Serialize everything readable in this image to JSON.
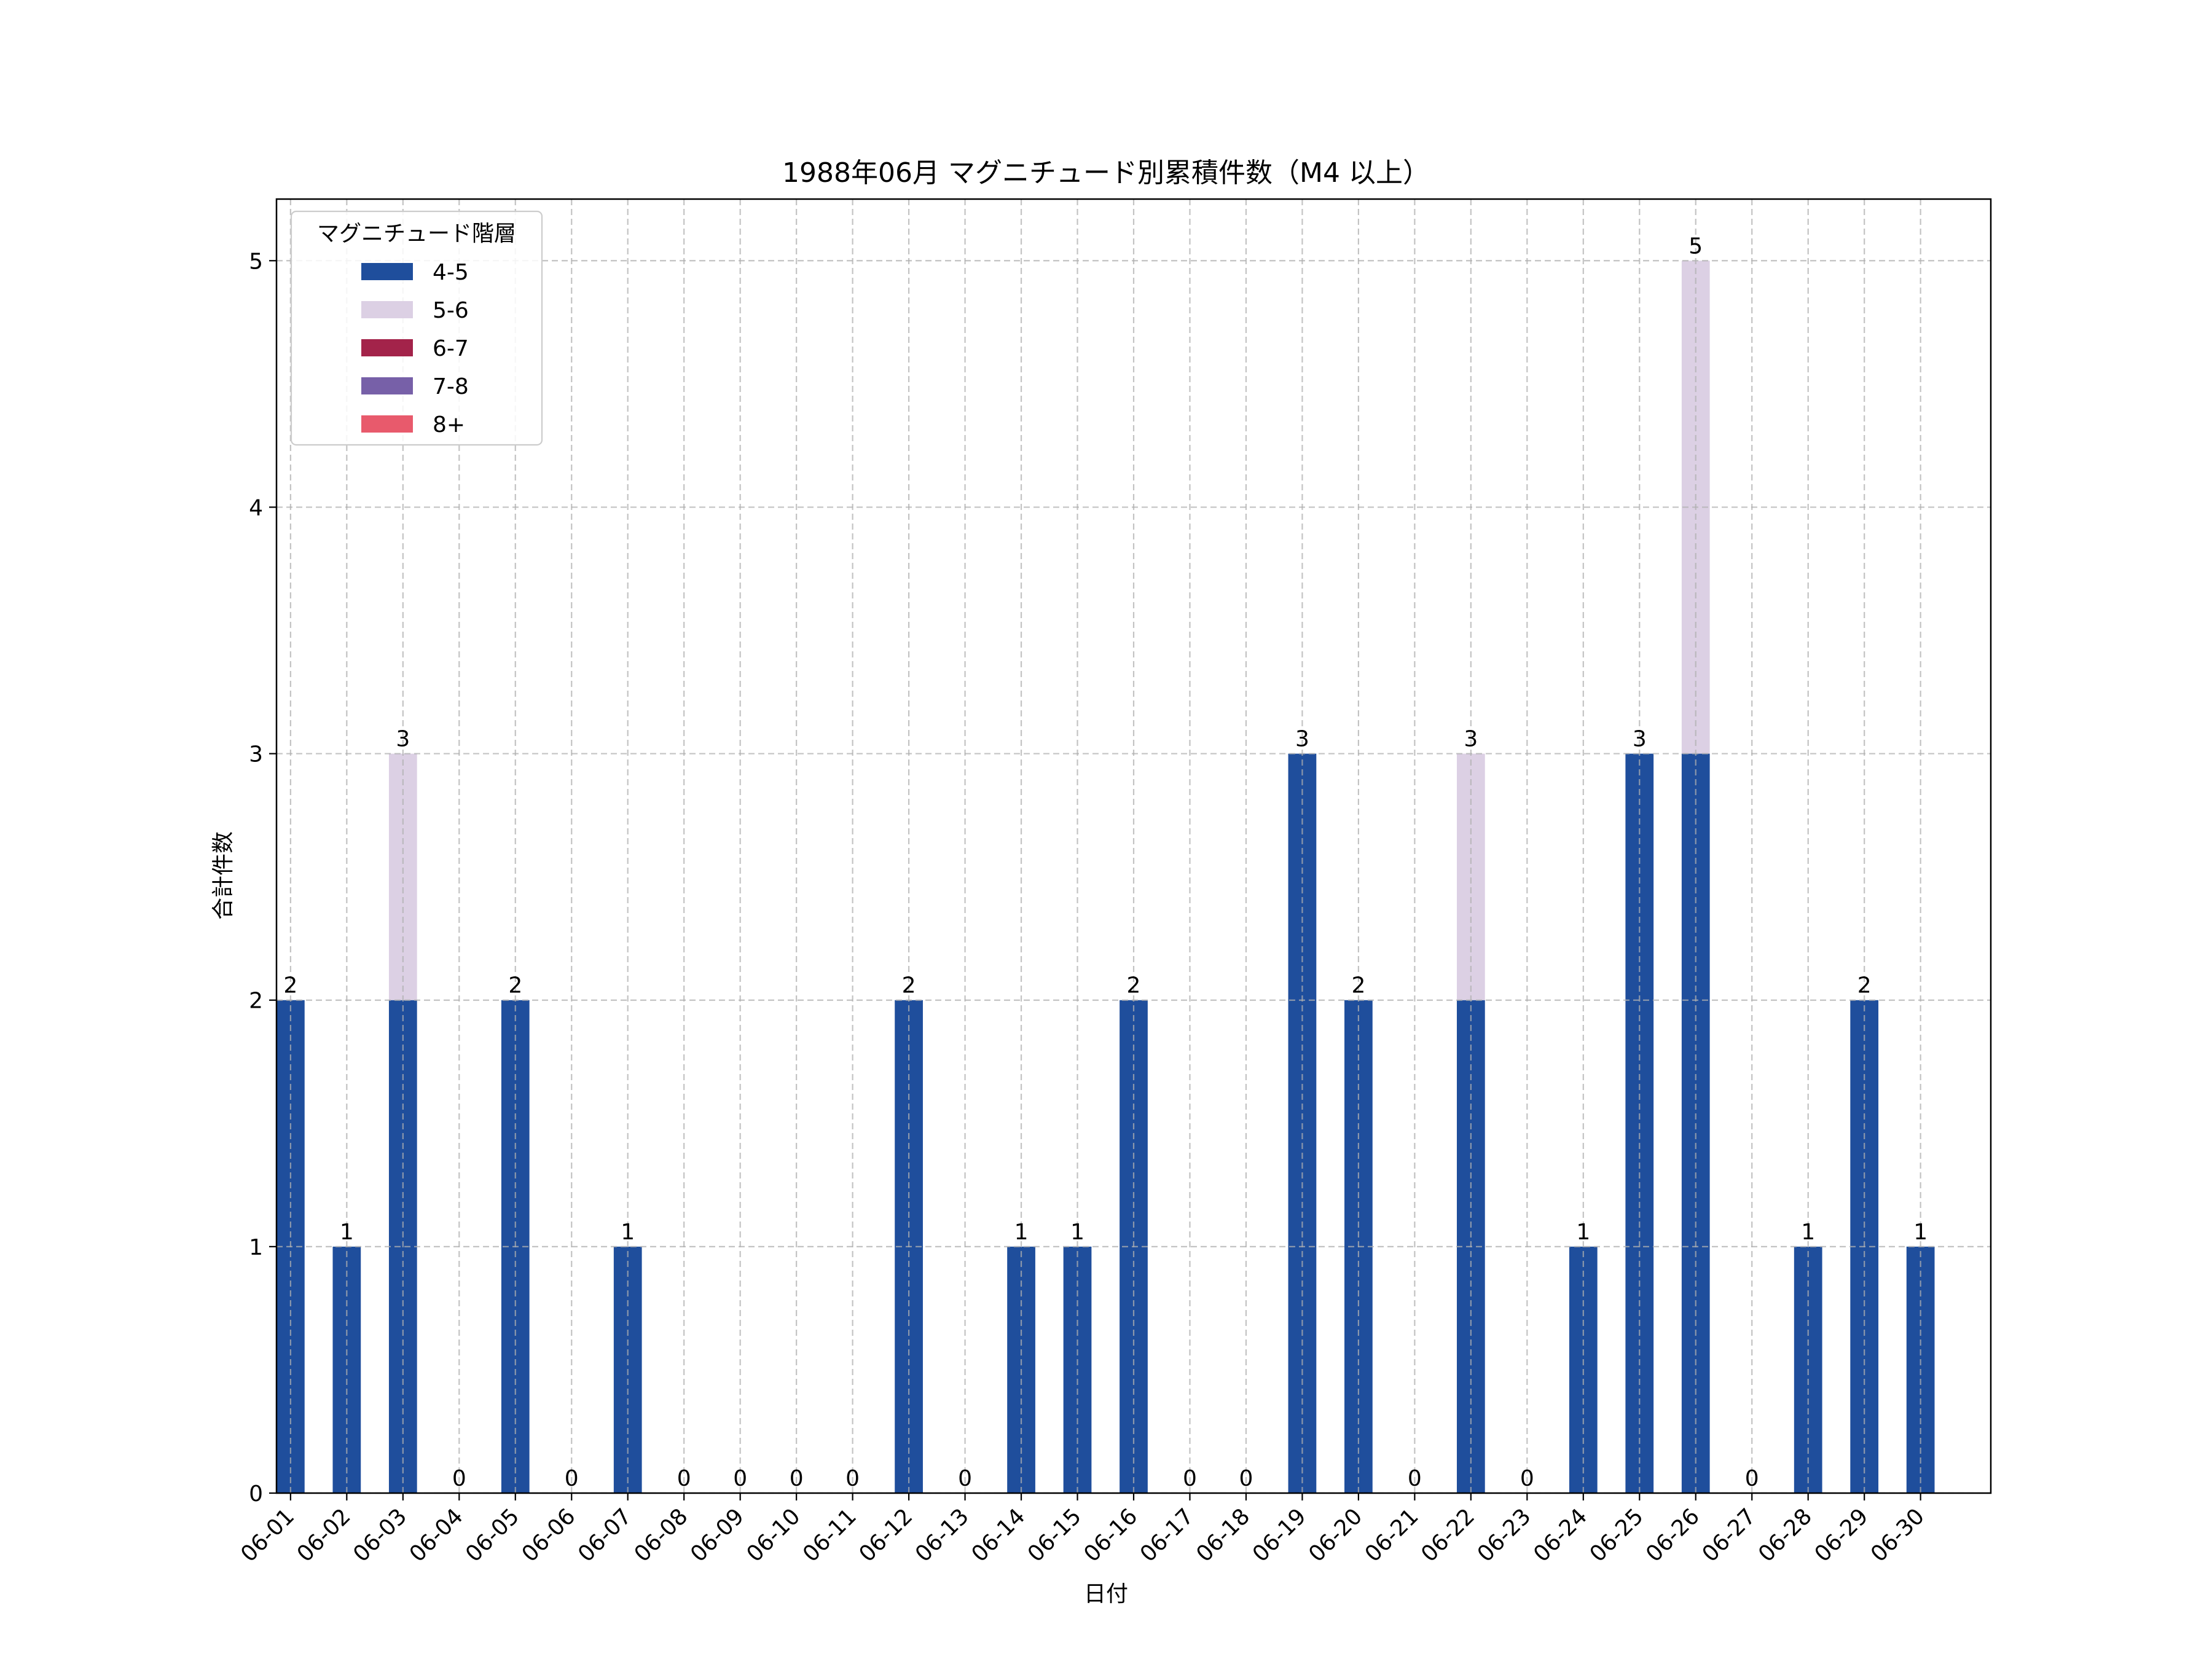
{
  "chart_data": {
    "type": "bar",
    "stacked": true,
    "title": "1988年06月 マグニチュード別累積件数（M4 以上）",
    "xlabel": "日付",
    "ylabel": "合計件数",
    "ylim": [
      0,
      5.25
    ],
    "yticks": [
      0,
      1,
      2,
      3,
      4,
      5
    ],
    "grid": true,
    "legend_title": "マグニチュード階層",
    "legend_position": "top-left",
    "categories": [
      "06-01",
      "06-02",
      "06-03",
      "06-04",
      "06-05",
      "06-06",
      "06-07",
      "06-08",
      "06-09",
      "06-10",
      "06-11",
      "06-12",
      "06-13",
      "06-14",
      "06-15",
      "06-16",
      "06-17",
      "06-18",
      "06-19",
      "06-20",
      "06-21",
      "06-22",
      "06-23",
      "06-24",
      "06-25",
      "06-26",
      "06-27",
      "06-28",
      "06-29",
      "06-30"
    ],
    "series": [
      {
        "name": "4-5",
        "color": "#1f4e9c",
        "values": [
          2,
          1,
          2,
          0,
          2,
          0,
          1,
          0,
          0,
          0,
          0,
          2,
          0,
          1,
          1,
          2,
          0,
          0,
          3,
          2,
          0,
          2,
          0,
          1,
          3,
          3,
          0,
          1,
          2,
          1
        ]
      },
      {
        "name": "5-6",
        "color": "#dcd0e4",
        "values": [
          0,
          0,
          1,
          0,
          0,
          0,
          0,
          0,
          0,
          0,
          0,
          0,
          0,
          0,
          0,
          0,
          0,
          0,
          0,
          0,
          0,
          1,
          0,
          0,
          0,
          2,
          0,
          0,
          0,
          0
        ]
      },
      {
        "name": "6-7",
        "color": "#a3234a",
        "values": [
          0,
          0,
          0,
          0,
          0,
          0,
          0,
          0,
          0,
          0,
          0,
          0,
          0,
          0,
          0,
          0,
          0,
          0,
          0,
          0,
          0,
          0,
          0,
          0,
          0,
          0,
          0,
          0,
          0,
          0
        ]
      },
      {
        "name": "7-8",
        "color": "#7760a8",
        "values": [
          0,
          0,
          0,
          0,
          0,
          0,
          0,
          0,
          0,
          0,
          0,
          0,
          0,
          0,
          0,
          0,
          0,
          0,
          0,
          0,
          0,
          0,
          0,
          0,
          0,
          0,
          0,
          0,
          0,
          0
        ]
      },
      {
        "name": "8+",
        "color": "#e85a6c",
        "values": [
          0,
          0,
          0,
          0,
          0,
          0,
          0,
          0,
          0,
          0,
          0,
          0,
          0,
          0,
          0,
          0,
          0,
          0,
          0,
          0,
          0,
          0,
          0,
          0,
          0,
          0,
          0,
          0,
          0,
          0
        ]
      }
    ],
    "totals": [
      2,
      1,
      3,
      0,
      2,
      0,
      1,
      0,
      0,
      0,
      0,
      2,
      0,
      1,
      1,
      2,
      0,
      0,
      3,
      2,
      0,
      3,
      0,
      1,
      3,
      5,
      0,
      1,
      2,
      1
    ]
  }
}
